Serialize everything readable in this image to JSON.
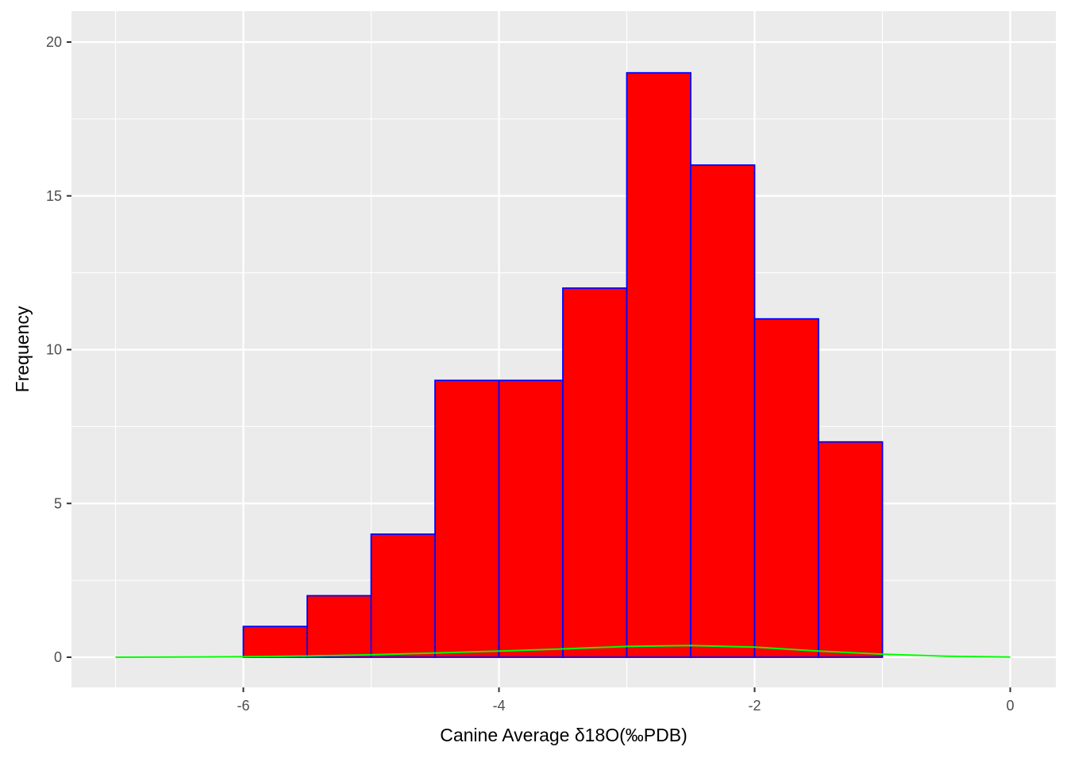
{
  "chart_data": {
    "type": "bar",
    "subtype": "histogram",
    "title": "",
    "xlabel": "Canine Average δ18O(‰PDB)",
    "ylabel": "Frequency",
    "xlim": [
      -7,
      0
    ],
    "ylim": [
      0,
      20
    ],
    "x_ticks": [
      -6,
      -4,
      -2,
      0
    ],
    "y_ticks": [
      0,
      5,
      10,
      15,
      20
    ],
    "grid": true,
    "bins": [
      {
        "x0": -6.0,
        "x1": -5.5,
        "count": 1
      },
      {
        "x0": -5.5,
        "x1": -5.0,
        "count": 2
      },
      {
        "x0": -5.0,
        "x1": -4.5,
        "count": 4
      },
      {
        "x0": -4.5,
        "x1": -4.0,
        "count": 9
      },
      {
        "x0": -4.0,
        "x1": -3.5,
        "count": 9
      },
      {
        "x0": -3.5,
        "x1": -3.0,
        "count": 12
      },
      {
        "x0": -3.0,
        "x1": -2.5,
        "count": 19
      },
      {
        "x0": -2.5,
        "x1": -2.0,
        "count": 16
      },
      {
        "x0": -2.0,
        "x1": -1.5,
        "count": 11
      },
      {
        "x0": -1.5,
        "x1": -1.0,
        "count": 7
      }
    ],
    "density_curve": {
      "x": [
        -7.0,
        -6.5,
        -6.0,
        -5.5,
        -5.0,
        -4.5,
        -4.0,
        -3.5,
        -3.0,
        -2.5,
        -2.0,
        -1.5,
        -1.0,
        -0.5,
        0.0
      ],
      "y": [
        0.0,
        0.005,
        0.015,
        0.04,
        0.08,
        0.14,
        0.2,
        0.27,
        0.35,
        0.38,
        0.33,
        0.2,
        0.1,
        0.03,
        0.005
      ]
    },
    "colors": {
      "panel_background": "#ebebeb",
      "grid": "#ffffff",
      "bar_fill": "#ff0000",
      "bar_outline": "#0000ff",
      "density_line": "#00ff00"
    }
  }
}
